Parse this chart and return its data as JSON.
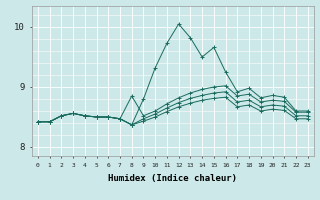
{
  "xlabel": "Humidex (Indice chaleur)",
  "ylabel": "",
  "background_color": "#cce8e8",
  "grid_color": "#ffffff",
  "grid_minor_color": "#e0f0f0",
  "line_color": "#1a6b5e",
  "xlim": [
    -0.5,
    23.5
  ],
  "ylim": [
    7.85,
    10.35
  ],
  "xticks": [
    0,
    1,
    2,
    3,
    4,
    5,
    6,
    7,
    8,
    9,
    10,
    11,
    12,
    13,
    14,
    15,
    16,
    17,
    18,
    19,
    20,
    21,
    22,
    23
  ],
  "yticks": [
    8,
    9,
    10
  ],
  "figsize": [
    3.2,
    2.0
  ],
  "dpi": 100,
  "series": [
    [
      8.42,
      8.42,
      8.52,
      8.56,
      8.52,
      8.5,
      8.5,
      8.47,
      8.37,
      8.8,
      9.32,
      9.73,
      10.05,
      9.82,
      9.5,
      9.66,
      9.25,
      8.92,
      8.98,
      8.82,
      8.86,
      8.83,
      8.6,
      8.6
    ],
    [
      8.42,
      8.42,
      8.52,
      8.56,
      8.52,
      8.5,
      8.5,
      8.47,
      8.85,
      8.52,
      8.6,
      8.72,
      8.82,
      8.9,
      8.96,
      9.0,
      9.02,
      8.85,
      8.88,
      8.75,
      8.78,
      8.76,
      8.58,
      8.58
    ],
    [
      8.42,
      8.42,
      8.52,
      8.56,
      8.52,
      8.5,
      8.5,
      8.47,
      8.37,
      8.47,
      8.55,
      8.65,
      8.74,
      8.81,
      8.86,
      8.9,
      8.92,
      8.75,
      8.78,
      8.67,
      8.7,
      8.68,
      8.52,
      8.52
    ],
    [
      8.42,
      8.42,
      8.52,
      8.56,
      8.52,
      8.5,
      8.5,
      8.47,
      8.37,
      8.43,
      8.5,
      8.59,
      8.67,
      8.73,
      8.78,
      8.81,
      8.83,
      8.67,
      8.7,
      8.6,
      8.63,
      8.61,
      8.47,
      8.47
    ]
  ]
}
